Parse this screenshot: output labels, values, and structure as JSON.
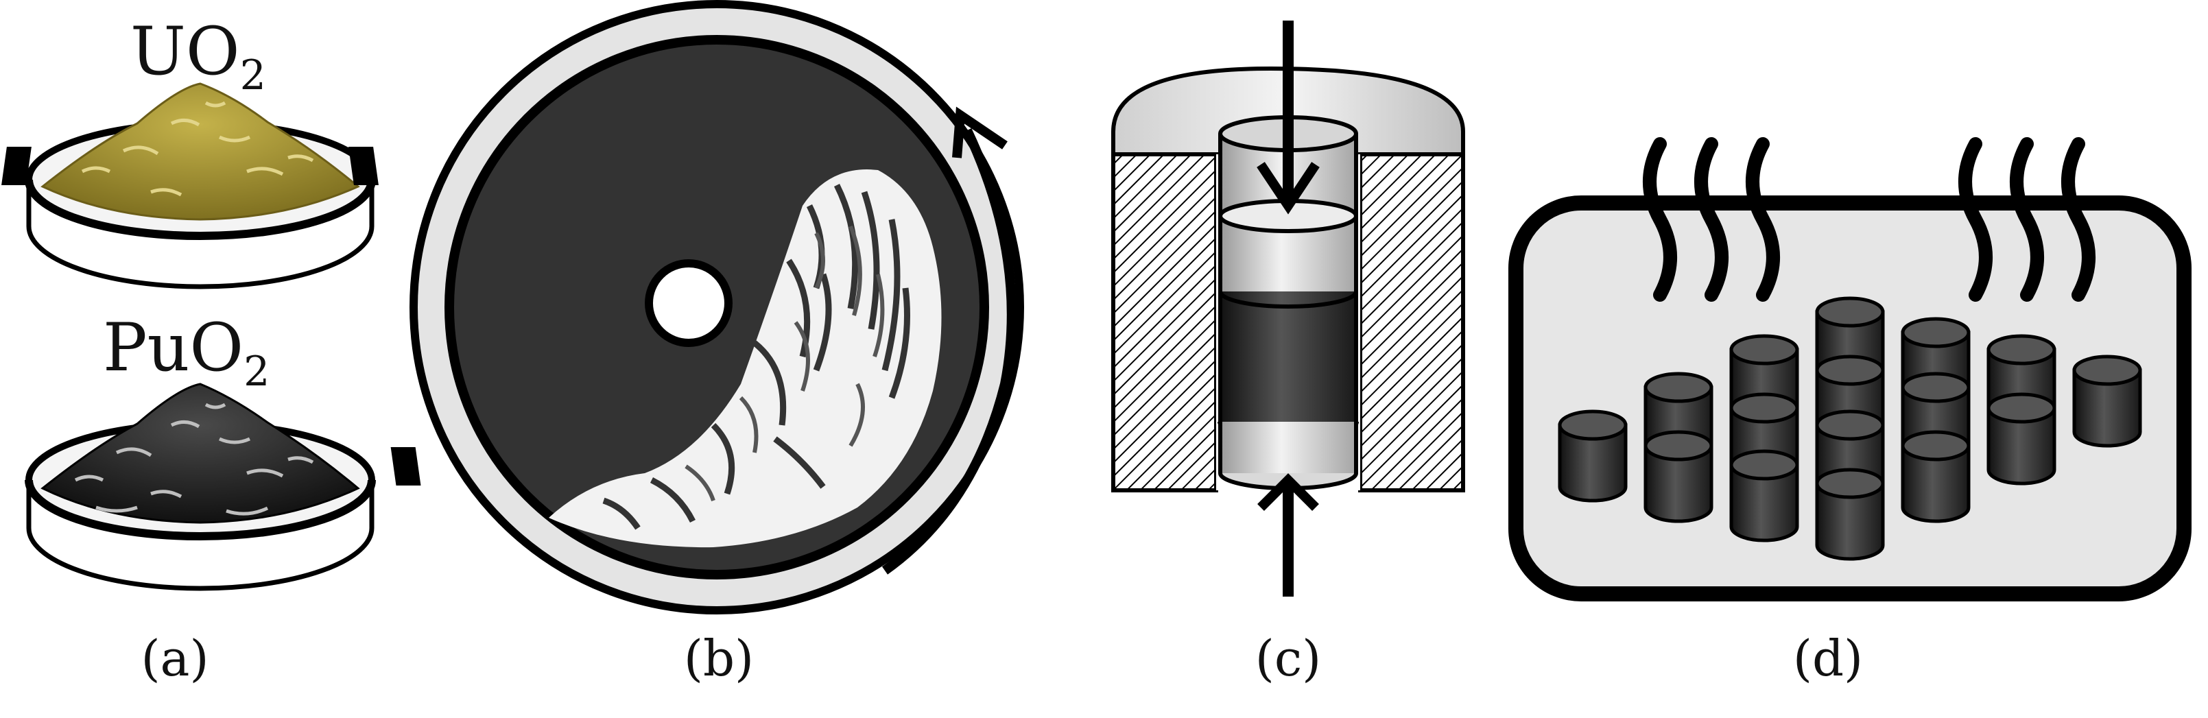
{
  "panels": [
    {
      "caption": "(a)",
      "labels": [
        {
          "base": "UO",
          "sub": "2"
        },
        {
          "base": "PuO",
          "sub": "2"
        }
      ]
    },
    {
      "caption": "(b)"
    },
    {
      "caption": "(c)"
    },
    {
      "caption": "(d)"
    }
  ],
  "colors": {
    "uo2_powder": "#a08f2c",
    "puo2_powder": "#2b2b2b",
    "dark_fill": "#333333",
    "light_fill": "#e6e6e6",
    "outline": "#000000"
  },
  "icons": {
    "panel_b_arrow": "curved-rotation-arrow",
    "panel_c_top_arrow": "down-arrow",
    "panel_c_bottom_arrow": "up-arrow",
    "panel_d_heat": "heat-wave-icon"
  }
}
